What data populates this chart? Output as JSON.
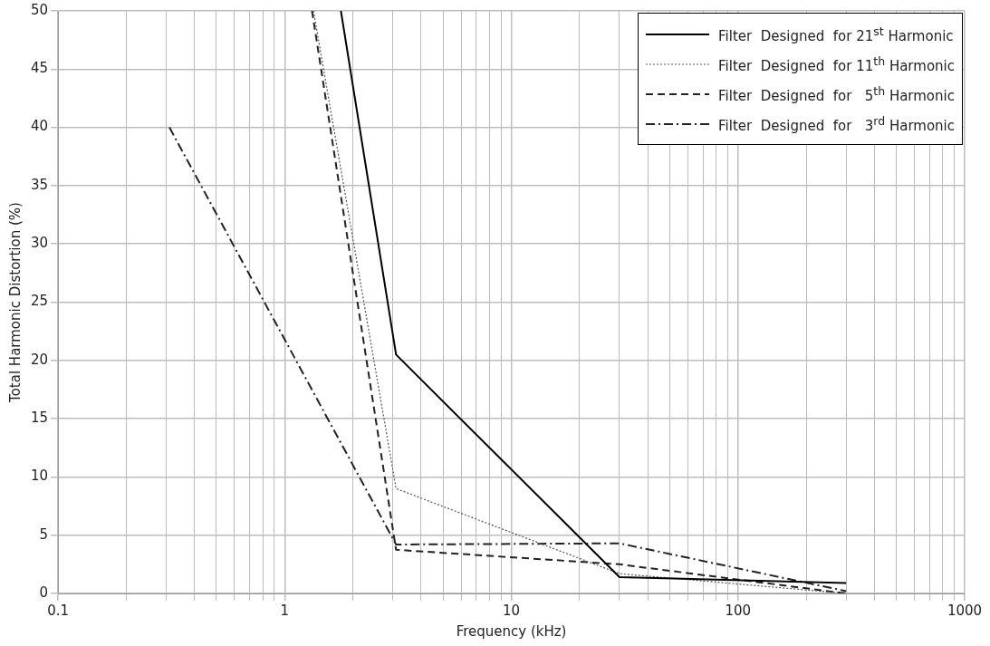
{
  "chart_data": {
    "type": "line",
    "xlabel": "Frequency (kHz)",
    "ylabel": "Total Harmonic Distortion (%)",
    "log": "x",
    "grid": true,
    "legend": "top right",
    "marker": "none",
    "xlim": [
      0.1,
      1000
    ],
    "ylim": [
      0,
      50
    ],
    "xticks": [
      0.1,
      {
        "value": 0.2,
        "label": null
      },
      {
        "value": 0.3,
        "label": null
      },
      {
        "value": 0.4,
        "label": null
      },
      {
        "value": 0.5,
        "label": null
      },
      {
        "value": 0.6,
        "label": null
      },
      {
        "value": 0.7,
        "label": null
      },
      {
        "value": 0.8,
        "label": null
      },
      {
        "value": 0.9,
        "label": null
      },
      1,
      {
        "value": 2,
        "label": null
      },
      {
        "value": 3,
        "label": null
      },
      {
        "value": 4,
        "label": null
      },
      {
        "value": 5,
        "label": null
      },
      {
        "value": 6,
        "label": null
      },
      {
        "value": 7,
        "label": null
      },
      {
        "value": 8,
        "label": null
      },
      {
        "value": 9,
        "label": null
      },
      10,
      {
        "value": 20,
        "label": null
      },
      {
        "value": 30,
        "label": null
      },
      {
        "value": 40,
        "label": null
      },
      {
        "value": 50,
        "label": null
      },
      {
        "value": 60,
        "label": null
      },
      {
        "value": 70,
        "label": null
      },
      {
        "value": 80,
        "label": null
      },
      {
        "value": 90,
        "label": null
      },
      100,
      {
        "value": 200,
        "label": null
      },
      {
        "value": 300,
        "label": null
      },
      {
        "value": 400,
        "label": null
      },
      {
        "value": 500,
        "label": null
      },
      {
        "value": 600,
        "label": null
      },
      {
        "value": 700,
        "label": null
      },
      {
        "value": 800,
        "label": null
      },
      {
        "value": 900,
        "label": null
      },
      1000
    ],
    "yticks": [
      0,
      5,
      10,
      15,
      20,
      25,
      30,
      35,
      40,
      45,
      50
    ],
    "series": [
      {
        "name": "Filter  Designed  for 21$^{st}$ Harmonic",
        "color": "#000000",
        "line_style": "solid",
        "x": [
          1.77,
          3.1,
          30,
          300
        ],
        "values": [
          50,
          20.5,
          1.4,
          0.9
        ]
      },
      {
        "name": "Filter  Designed  for 11$^{th}$ Harmonic",
        "color": "#555555",
        "line_style": "dotted",
        "x": [
          1.34,
          3.1,
          30,
          300
        ],
        "values": [
          50,
          9,
          1.7,
          0
        ]
      },
      {
        "name": "Filter  Designed  for   5$^{th}$ Harmonic",
        "color": "#222222",
        "line_style": "dashed",
        "x": [
          1.32,
          3.1,
          30,
          300
        ],
        "values": [
          50,
          3.75,
          2.5,
          0
        ]
      },
      {
        "name": "Filter  Designed  for   3$^{rd}$ Harmonic",
        "color": "#222222",
        "line_style": "dashdot",
        "x": [
          0.31,
          3.1,
          30,
          300
        ],
        "values": [
          40,
          4.2,
          4.3,
          0.2
        ]
      }
    ]
  }
}
